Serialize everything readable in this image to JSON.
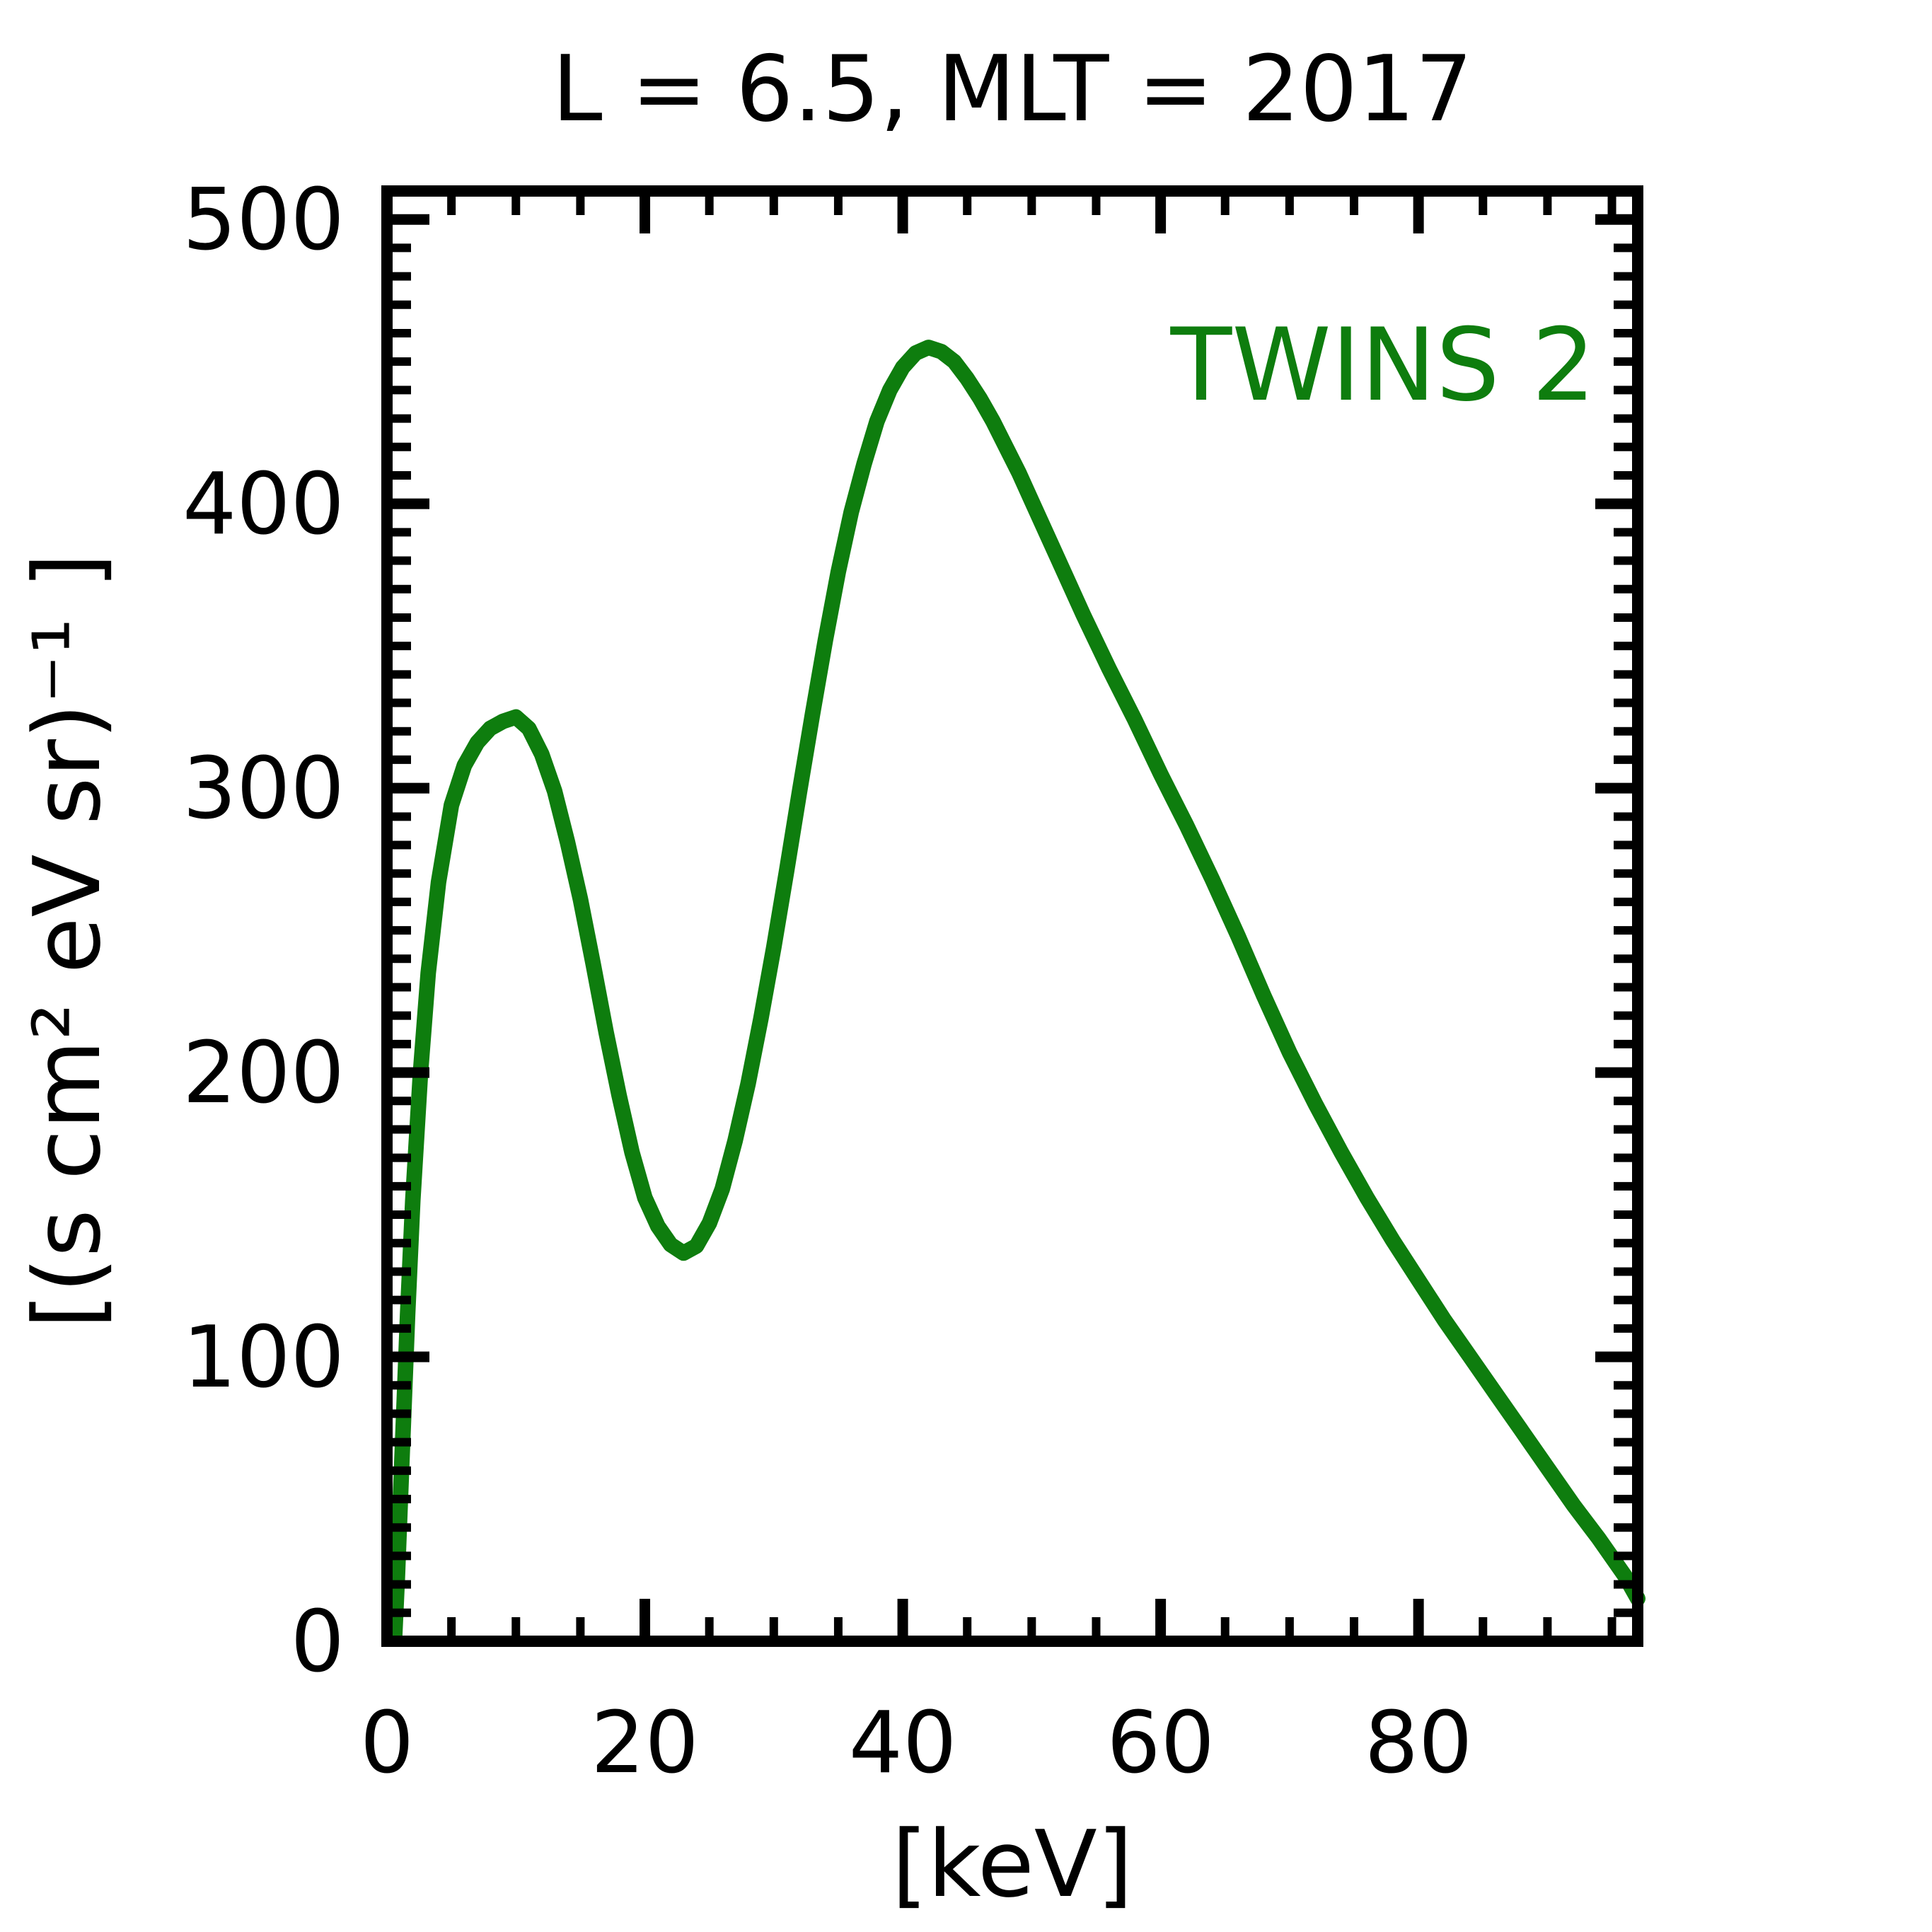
{
  "title": "L =  6.5, MLT = 2017",
  "legend": {
    "label": "TWINS 2",
    "color": "#0e7d0e"
  },
  "axes": {
    "xlabel": "[keV]",
    "ylabel": "[(s cm² eV sr)⁻¹ ]"
  },
  "chart_data": {
    "type": "line",
    "title": "L =  6.5, MLT = 2017",
    "xlabel": "[keV]",
    "ylabel": "[(s cm² eV sr)⁻¹ ]",
    "xlim": [
      0,
      97
    ],
    "ylim": [
      0,
      510
    ],
    "x_major_ticks": [
      0,
      20,
      40,
      60,
      80
    ],
    "x_minor_step": 5,
    "y_major_ticks": [
      0,
      100,
      200,
      300,
      400,
      500
    ],
    "y_minor_step": 10,
    "grid": false,
    "legend_position": "upper right",
    "line_color": "#0e7d0e",
    "line_width": 22,
    "series": [
      {
        "name": "TWINS 2",
        "color": "#0e7d0e",
        "points": [
          [
            0.6,
            2
          ],
          [
            0.8,
            22
          ],
          [
            1.0,
            45
          ],
          [
            1.3,
            80
          ],
          [
            1.6,
            115
          ],
          [
            2.0,
            155
          ],
          [
            2.6,
            200
          ],
          [
            3.2,
            235
          ],
          [
            4.0,
            267
          ],
          [
            5.0,
            294
          ],
          [
            6.0,
            308
          ],
          [
            7.0,
            316
          ],
          [
            8.0,
            321
          ],
          [
            9.0,
            323.5
          ],
          [
            10.0,
            325
          ],
          [
            11.0,
            321
          ],
          [
            12.0,
            312
          ],
          [
            13.0,
            299
          ],
          [
            14.0,
            281
          ],
          [
            15.0,
            261
          ],
          [
            16.0,
            238
          ],
          [
            17.0,
            214
          ],
          [
            18.0,
            192
          ],
          [
            19.0,
            172
          ],
          [
            20.0,
            156
          ],
          [
            21.0,
            146
          ],
          [
            22.0,
            139.5
          ],
          [
            23.0,
            136.5
          ],
          [
            24.0,
            139
          ],
          [
            25.0,
            147
          ],
          [
            26.0,
            159
          ],
          [
            27.0,
            176
          ],
          [
            28.0,
            196
          ],
          [
            29.0,
            219
          ],
          [
            30.0,
            244
          ],
          [
            31.0,
            271
          ],
          [
            32.0,
            299
          ],
          [
            33.0,
            326
          ],
          [
            34.0,
            352
          ],
          [
            35.0,
            376
          ],
          [
            36.0,
            397
          ],
          [
            37.0,
            414
          ],
          [
            38.0,
            429
          ],
          [
            39.0,
            440
          ],
          [
            40.0,
            448
          ],
          [
            41.0,
            453
          ],
          [
            42.0,
            455
          ],
          [
            43.0,
            453.5
          ],
          [
            44.0,
            450
          ],
          [
            45.0,
            444
          ],
          [
            46.0,
            437
          ],
          [
            47.0,
            429
          ],
          [
            48.0,
            420
          ],
          [
            49.0,
            411
          ],
          [
            50.0,
            401
          ],
          [
            52.0,
            381
          ],
          [
            54.0,
            361
          ],
          [
            56.0,
            342
          ],
          [
            58.0,
            324
          ],
          [
            60.0,
            305
          ],
          [
            61.0,
            296
          ],
          [
            62.0,
            287
          ],
          [
            64.0,
            268
          ],
          [
            66.0,
            248
          ],
          [
            68.0,
            227
          ],
          [
            70.0,
            207
          ],
          [
            72.0,
            189
          ],
          [
            74.0,
            172
          ],
          [
            76.0,
            156
          ],
          [
            78.0,
            141
          ],
          [
            80.0,
            127
          ],
          [
            82.0,
            113
          ],
          [
            84.0,
            100
          ],
          [
            86.0,
            87
          ],
          [
            88.0,
            74
          ],
          [
            90.0,
            61
          ],
          [
            92.0,
            48
          ],
          [
            94.0,
            36
          ],
          [
            96.0,
            23
          ],
          [
            97.0,
            15
          ]
        ]
      }
    ]
  }
}
